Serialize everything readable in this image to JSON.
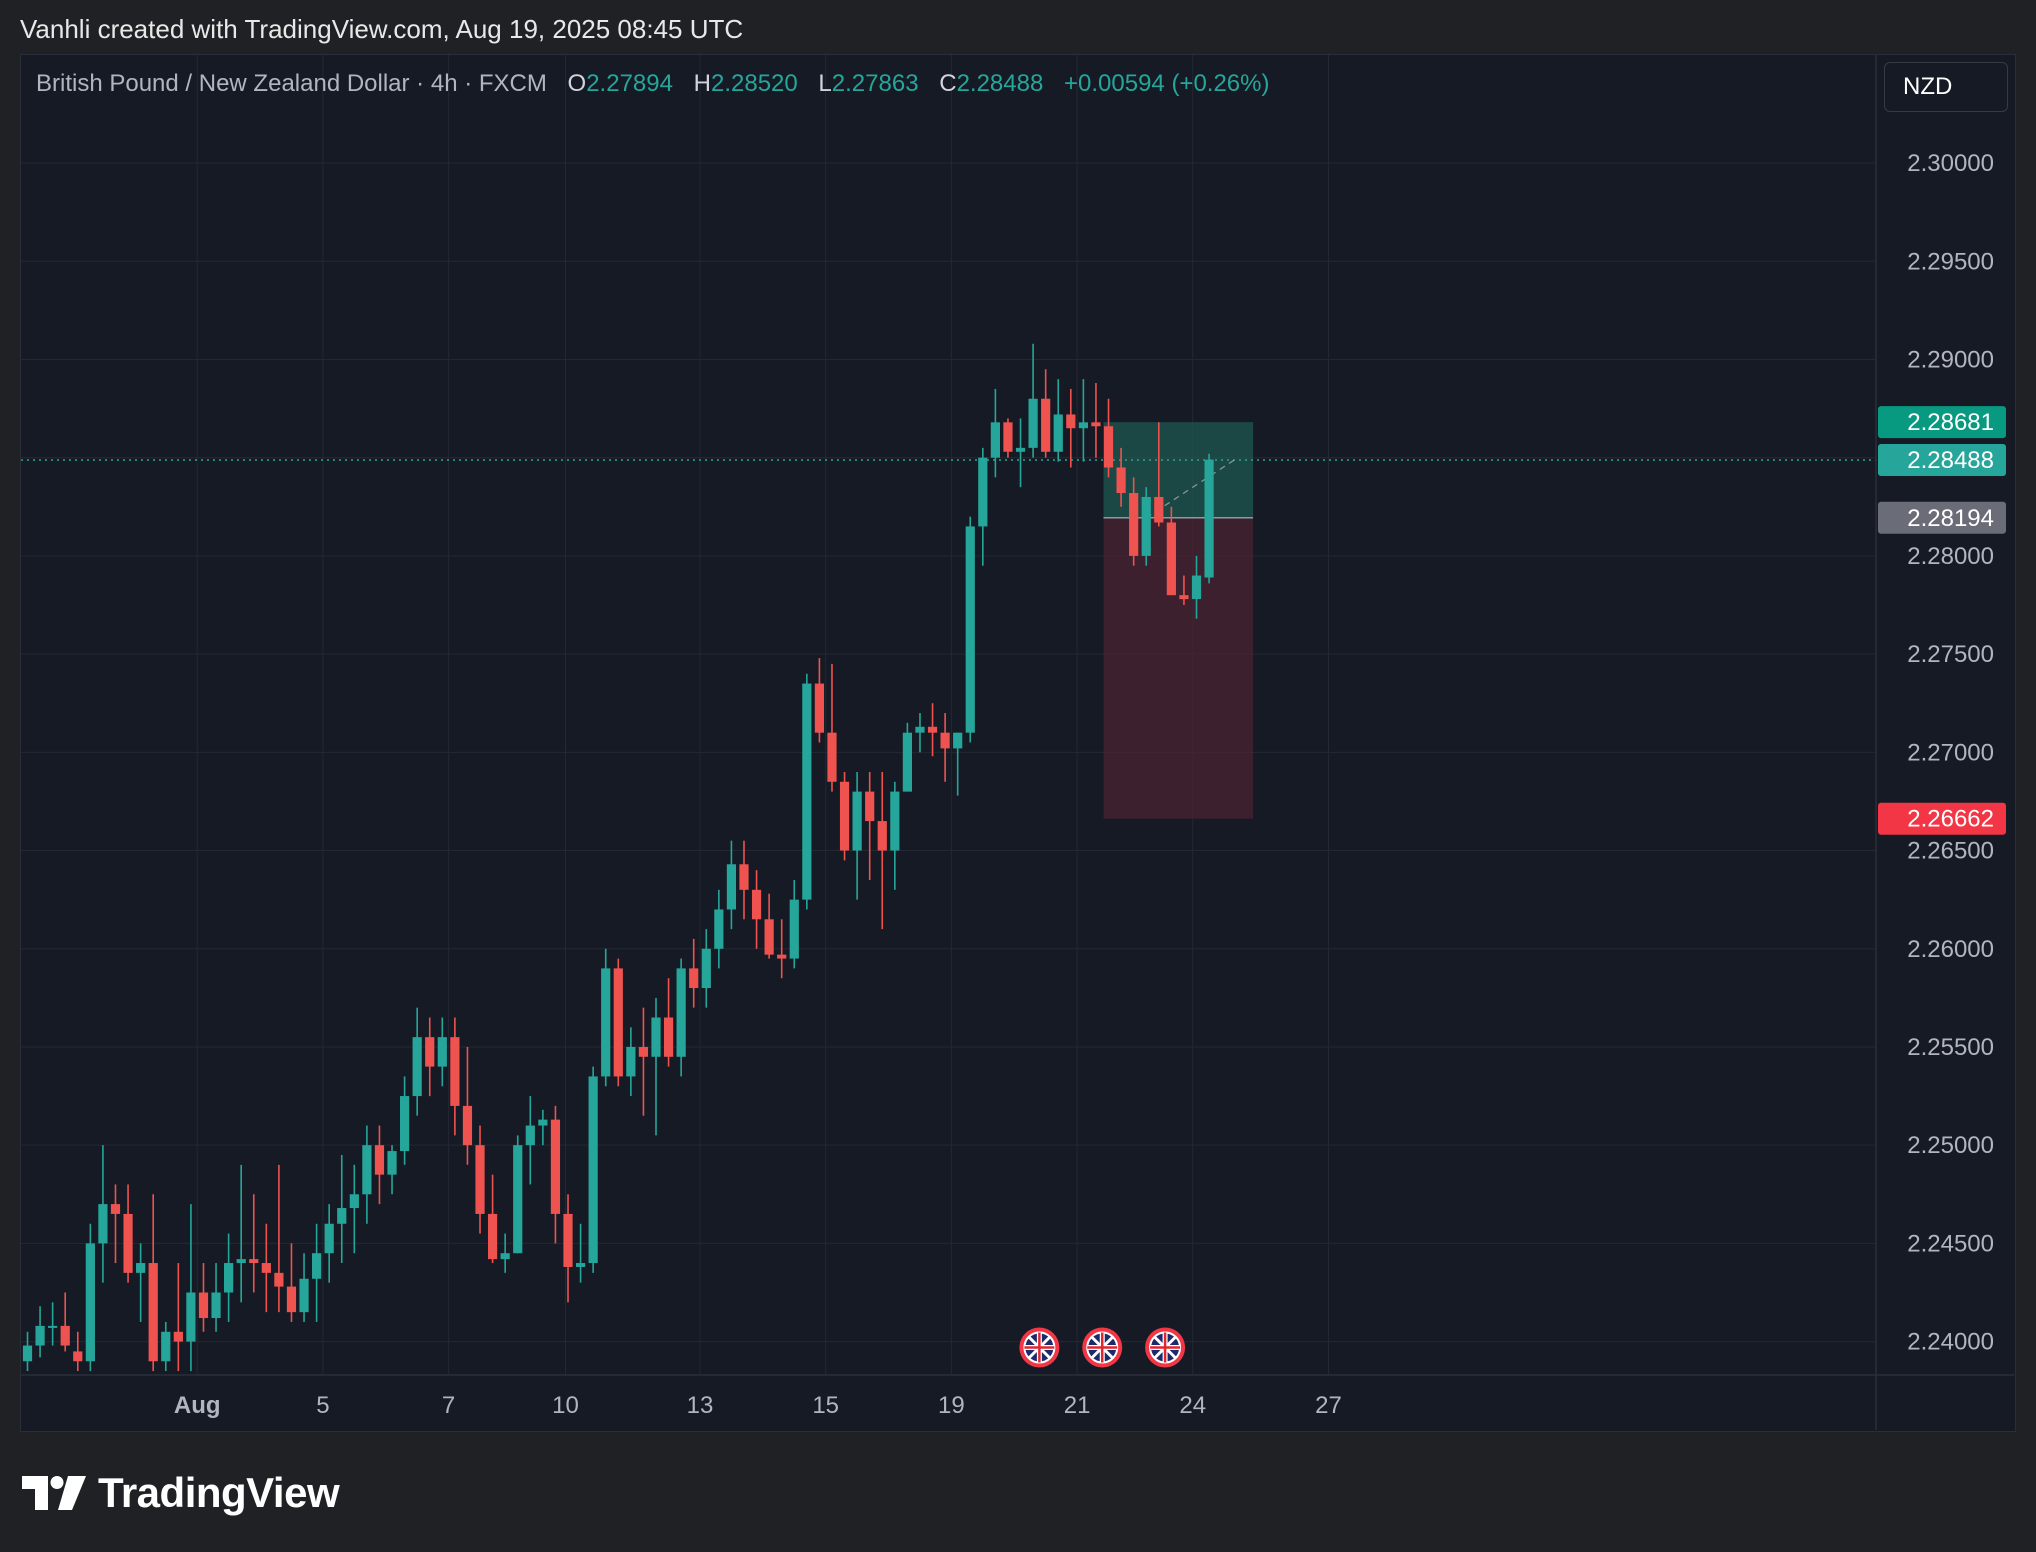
{
  "top_note": "Vanhli created with TradingView.com, Aug 19, 2025 08:45 UTC",
  "header": {
    "symbol": "British Pound / New Zealand Dollar · 4h · FXCM",
    "open_label": "O",
    "open": "2.27894",
    "high_label": "H",
    "high": "2.28520",
    "low_label": "L",
    "low": "2.27863",
    "close_label": "C",
    "close": "2.28488",
    "change": "+0.00594 (+0.26%)"
  },
  "currency": "NZD",
  "brand": "TradingView",
  "colors": {
    "up": "#26a69a",
    "down": "#ef5350",
    "background": "#161a25",
    "grid": "#242833",
    "profit_zone": "#1e5f55",
    "loss_zone": "#4a2330",
    "take_profit_tag": "#089981",
    "stop_tag": "#f23645",
    "entry_tag": "#6a6d78"
  },
  "chart_data": {
    "type": "candlestick",
    "symbol": "GBPNZD",
    "timeframe": "4h",
    "ylim": [
      2.2383,
      2.3055
    ],
    "y_ticks": [
      "2.30000",
      "2.29500",
      "2.29000",
      "2.28500",
      "2.28000",
      "2.27500",
      "2.27000",
      "2.26500",
      "2.26000",
      "2.25500",
      "2.25000",
      "2.24500",
      "2.24000"
    ],
    "x_ticks": [
      {
        "label": "Aug",
        "bar": 13.5
      },
      {
        "label": "5",
        "bar": 23.5
      },
      {
        "label": "7",
        "bar": 33.5
      },
      {
        "label": "10",
        "bar": 42.8
      },
      {
        "label": "13",
        "bar": 53.5
      },
      {
        "label": "15",
        "bar": 63.5
      },
      {
        "label": "19",
        "bar": 73.5
      },
      {
        "label": "21",
        "bar": 83.5
      },
      {
        "label": "24",
        "bar": 92.7
      },
      {
        "label": "27",
        "bar": 103.5
      }
    ],
    "candles": [
      [
        2.239,
        2.2405,
        2.2385,
        2.2398
      ],
      [
        2.2398,
        2.2418,
        2.2392,
        2.2408
      ],
      [
        2.2408,
        2.242,
        2.2398,
        2.2408
      ],
      [
        2.2408,
        2.2425,
        2.2395,
        2.2398
      ],
      [
        2.2395,
        2.2405,
        2.2385,
        2.239
      ],
      [
        2.239,
        2.246,
        2.2385,
        2.245
      ],
      [
        2.245,
        2.25,
        2.243,
        2.247
      ],
      [
        2.247,
        2.248,
        2.244,
        2.2465
      ],
      [
        2.2465,
        2.248,
        2.243,
        2.2435
      ],
      [
        2.2435,
        2.245,
        2.241,
        2.244
      ],
      [
        2.244,
        2.2475,
        2.2385,
        2.239
      ],
      [
        2.239,
        2.241,
        2.2385,
        2.2405
      ],
      [
        2.2405,
        2.244,
        2.2385,
        2.24
      ],
      [
        2.24,
        2.247,
        2.2385,
        2.2425
      ],
      [
        2.2425,
        2.244,
        2.2405,
        2.2412
      ],
      [
        2.2412,
        2.244,
        2.2405,
        2.2425
      ],
      [
        2.2425,
        2.2455,
        2.241,
        2.244
      ],
      [
        2.244,
        2.249,
        2.242,
        2.2442
      ],
      [
        2.2442,
        2.2475,
        2.2425,
        2.244
      ],
      [
        2.244,
        2.246,
        2.2415,
        2.2435
      ],
      [
        2.2435,
        2.249,
        2.2415,
        2.2428
      ],
      [
        2.2428,
        2.245,
        2.241,
        2.2415
      ],
      [
        2.2415,
        2.2445,
        2.241,
        2.2432
      ],
      [
        2.2432,
        2.246,
        2.241,
        2.2445
      ],
      [
        2.2445,
        2.247,
        2.243,
        2.246
      ],
      [
        2.246,
        2.2495,
        2.244,
        2.2468
      ],
      [
        2.2468,
        2.249,
        2.2445,
        2.2475
      ],
      [
        2.2475,
        2.251,
        2.246,
        2.25
      ],
      [
        2.25,
        2.251,
        2.247,
        2.2485
      ],
      [
        2.2485,
        2.25,
        2.2475,
        2.2497
      ],
      [
        2.2497,
        2.2535,
        2.249,
        2.2525
      ],
      [
        2.2525,
        2.257,
        2.2515,
        2.2555
      ],
      [
        2.2555,
        2.2565,
        2.2525,
        2.254
      ],
      [
        2.254,
        2.2565,
        2.253,
        2.2555
      ],
      [
        2.2555,
        2.2565,
        2.2505,
        2.252
      ],
      [
        2.252,
        2.255,
        2.249,
        2.25
      ],
      [
        2.25,
        2.251,
        2.2455,
        2.2465
      ],
      [
        2.2465,
        2.2485,
        2.244,
        2.2442
      ],
      [
        2.2442,
        2.2455,
        2.2435,
        2.2445
      ],
      [
        2.2445,
        2.2505,
        2.2445,
        2.25
      ],
      [
        2.25,
        2.2525,
        2.248,
        2.251
      ],
      [
        2.251,
        2.2518,
        2.25,
        2.2513
      ],
      [
        2.2513,
        2.252,
        2.245,
        2.2465
      ],
      [
        2.2465,
        2.2475,
        2.242,
        2.2438
      ],
      [
        2.2438,
        2.246,
        2.243,
        2.244
      ],
      [
        2.244,
        2.254,
        2.2435,
        2.2535
      ],
      [
        2.2535,
        2.26,
        2.253,
        2.259
      ],
      [
        2.259,
        2.2595,
        2.253,
        2.2535
      ],
      [
        2.2535,
        2.256,
        2.2525,
        2.255
      ],
      [
        2.255,
        2.257,
        2.2515,
        2.2545
      ],
      [
        2.2545,
        2.2575,
        2.2505,
        2.2565
      ],
      [
        2.2565,
        2.2585,
        2.254,
        2.2545
      ],
      [
        2.2545,
        2.2595,
        2.2535,
        2.259
      ],
      [
        2.259,
        2.2605,
        2.257,
        2.258
      ],
      [
        2.258,
        2.261,
        2.257,
        2.26
      ],
      [
        2.26,
        2.263,
        2.259,
        2.262
      ],
      [
        2.262,
        2.2655,
        2.261,
        2.2643
      ],
      [
        2.2643,
        2.2655,
        2.2615,
        2.263
      ],
      [
        2.263,
        2.264,
        2.26,
        2.2615
      ],
      [
        2.2615,
        2.2628,
        2.2595,
        2.2597
      ],
      [
        2.2597,
        2.2615,
        2.2585,
        2.2595
      ],
      [
        2.2595,
        2.2635,
        2.259,
        2.2625
      ],
      [
        2.2625,
        2.274,
        2.262,
        2.2735
      ],
      [
        2.2735,
        2.2748,
        2.2705,
        2.271
      ],
      [
        2.271,
        2.2745,
        2.268,
        2.2685
      ],
      [
        2.2685,
        2.269,
        2.2645,
        2.265
      ],
      [
        2.265,
        2.269,
        2.2625,
        2.268
      ],
      [
        2.268,
        2.269,
        2.2635,
        2.2665
      ],
      [
        2.2665,
        2.269,
        2.261,
        2.265
      ],
      [
        2.265,
        2.2685,
        2.263,
        2.268
      ],
      [
        2.268,
        2.2715,
        2.268,
        2.271
      ],
      [
        2.271,
        2.272,
        2.27,
        2.2713
      ],
      [
        2.2713,
        2.2725,
        2.2698,
        2.271
      ],
      [
        2.271,
        2.272,
        2.2685,
        2.2702
      ],
      [
        2.2702,
        2.271,
        2.2678,
        2.271
      ],
      [
        2.271,
        2.282,
        2.2705,
        2.2815
      ],
      [
        2.2815,
        2.2855,
        2.2795,
        2.285
      ],
      [
        2.285,
        2.2885,
        2.284,
        2.2868
      ],
      [
        2.2868,
        2.287,
        2.285,
        2.2853
      ],
      [
        2.2853,
        2.287,
        2.2835,
        2.2855
      ],
      [
        2.2855,
        2.2908,
        2.285,
        2.288
      ],
      [
        2.288,
        2.2895,
        2.285,
        2.2853
      ],
      [
        2.2853,
        2.289,
        2.2848,
        2.2872
      ],
      [
        2.2872,
        2.2885,
        2.2845,
        2.2865
      ],
      [
        2.2865,
        2.289,
        2.2848,
        2.2868
      ],
      [
        2.2868,
        2.2888,
        2.285,
        2.2866
      ],
      [
        2.2866,
        2.288,
        2.284,
        2.2845
      ],
      [
        2.2845,
        2.2855,
        2.2825,
        2.2832
      ],
      [
        2.2832,
        2.284,
        2.2795,
        2.28
      ],
      [
        2.28,
        2.2835,
        2.2795,
        2.283
      ],
      [
        2.283,
        2.2868,
        2.2815,
        2.2817
      ],
      [
        2.2817,
        2.2825,
        2.278,
        2.278
      ],
      [
        2.278,
        2.279,
        2.2775,
        2.2778
      ],
      [
        2.2778,
        2.28,
        2.2768,
        2.279
      ],
      [
        2.2789,
        2.2852,
        2.2786,
        2.2849
      ]
    ],
    "last_price": 2.28488,
    "position": {
      "type": "short",
      "take_profit": 2.28681,
      "entry": 2.28194,
      "stop": 2.26662,
      "start_bar": 85.6,
      "end_bar": 97.5
    },
    "events": [
      {
        "bar": 80.5,
        "price": 2.2397
      },
      {
        "bar": 85.5,
        "price": 2.2397
      },
      {
        "bar": 90.5,
        "price": 2.2397
      }
    ],
    "price_tags": [
      "2.28681",
      "2.28488",
      "2.28194",
      "2.26662"
    ]
  }
}
